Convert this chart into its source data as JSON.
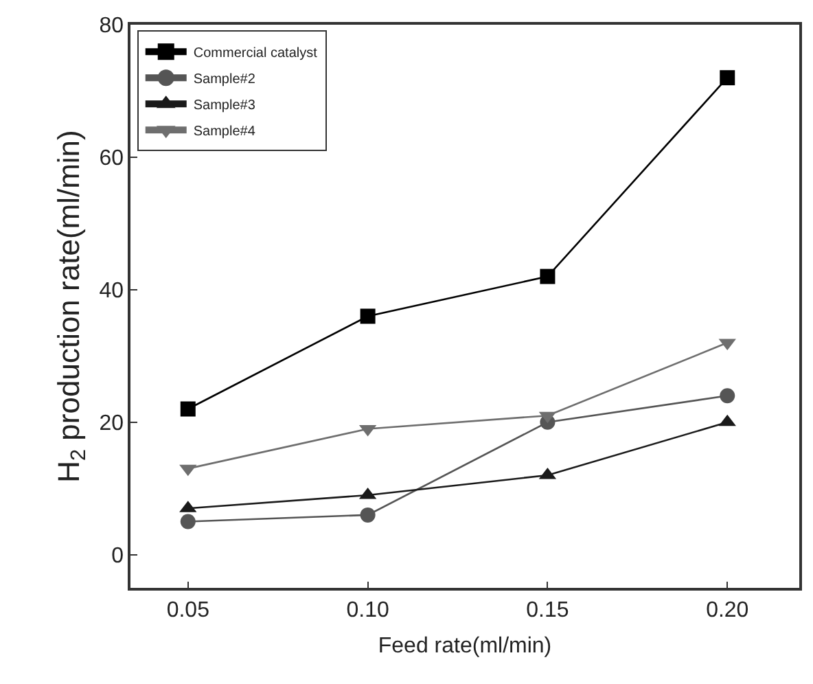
{
  "chart_data": {
    "type": "line",
    "xlabel": "Feed rate(ml/min)",
    "ylabel": "H$_{2}$ production rate(ml/min)",
    "x": [
      0.05,
      0.1,
      0.15,
      0.2
    ],
    "xlim": [
      0.034,
      0.22
    ],
    "xticks": [
      {
        "value": 0.05,
        "label": "0.05"
      },
      {
        "value": 0.1,
        "label": "0.10"
      },
      {
        "value": 0.15,
        "label": "0.15"
      },
      {
        "value": 0.2,
        "label": "0.20"
      }
    ],
    "ylim": [
      -5,
      80
    ],
    "yticks": [
      0,
      20,
      40,
      60,
      80
    ],
    "legend": "top left",
    "line_style": "solid",
    "series": [
      {
        "name": "Commercial catalyst",
        "color": "#000000",
        "marker": "square",
        "values": [
          22,
          36,
          42,
          72
        ]
      },
      {
        "name": "Sample#2",
        "color": "#555555",
        "marker": "circle",
        "values": [
          5,
          6,
          20,
          24
        ]
      },
      {
        "name": "Sample#3",
        "color": "#1a1a1a",
        "marker": "triangle",
        "values": [
          7,
          9,
          12,
          20
        ]
      },
      {
        "name": "Sample#4",
        "color": "#6e6e6e",
        "marker": "triangle-down",
        "values": [
          13,
          19,
          21,
          32
        ]
      }
    ]
  }
}
